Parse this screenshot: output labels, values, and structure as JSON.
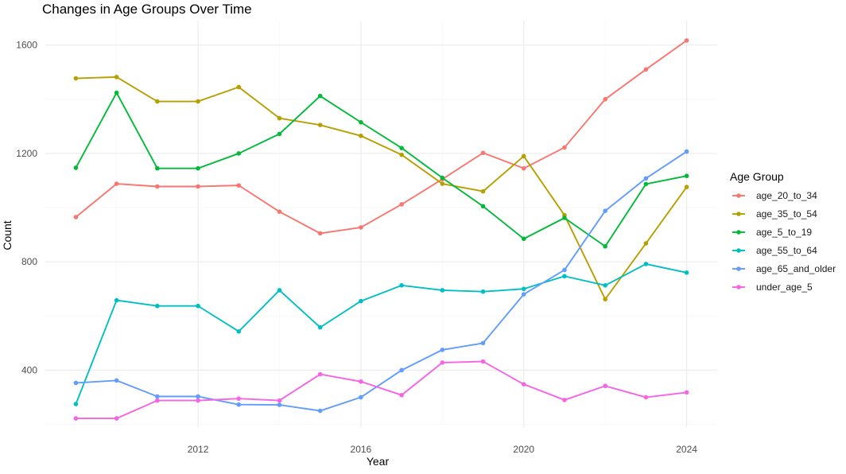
{
  "chart_data": {
    "type": "line",
    "title": "Changes in Age Groups Over Time",
    "xlabel": "Year",
    "ylabel": "Count",
    "x": [
      2009,
      2010,
      2011,
      2012,
      2013,
      2014,
      2015,
      2016,
      2017,
      2018,
      2019,
      2020,
      2021,
      2022,
      2023,
      2024
    ],
    "xlim": [
      2008.25,
      2024.75
    ],
    "ylim": [
      190,
      1690
    ],
    "x_ticks": [
      2012,
      2016,
      2020,
      2024
    ],
    "x_tick_labels": [
      "2012",
      "2016",
      "2020",
      "2024"
    ],
    "y_ticks": [
      400,
      800,
      1200,
      1600
    ],
    "y_tick_labels": [
      "400",
      "800",
      "1200",
      "1600"
    ],
    "grid": true,
    "legend": {
      "title": "Age Group",
      "position": "right"
    },
    "series": [
      {
        "name": "age_20_to_34",
        "color": "#F8766D",
        "values": [
          965,
          1088,
          1078,
          1078,
          1082,
          985,
          905,
          927,
          1012,
          1105,
          1202,
          1145,
          1222,
          1400,
          1510,
          1617
        ]
      },
      {
        "name": "age_35_to_54",
        "color": "#B79F00",
        "values": [
          1477,
          1482,
          1392,
          1392,
          1445,
          1330,
          1305,
          1265,
          1195,
          1088,
          1060,
          1190,
          972,
          662,
          868,
          1076
        ]
      },
      {
        "name": "age_5_to_19",
        "color": "#00BA38",
        "values": [
          1147,
          1424,
          1145,
          1145,
          1200,
          1272,
          1412,
          1315,
          1220,
          1110,
          1005,
          885,
          962,
          857,
          1087,
          1117
        ]
      },
      {
        "name": "age_55_to_64",
        "color": "#00BFC4",
        "values": [
          275,
          658,
          637,
          637,
          543,
          695,
          558,
          655,
          713,
          695,
          690,
          700,
          747,
          713,
          792,
          760
        ]
      },
      {
        "name": "age_65_and_older",
        "color": "#619CFF",
        "values": [
          353,
          362,
          303,
          303,
          273,
          272,
          250,
          300,
          400,
          475,
          500,
          680,
          770,
          988,
          1108,
          1207
        ]
      },
      {
        "name": "under_age_5",
        "color": "#F564E3",
        "values": [
          222,
          222,
          288,
          288,
          295,
          288,
          385,
          358,
          308,
          428,
          432,
          348,
          290,
          342,
          300,
          318
        ]
      }
    ]
  },
  "colors": {
    "panel_background": "#ffffff",
    "grid_major": "#ebebeb",
    "grid_minor": "#f5f5f5"
  }
}
